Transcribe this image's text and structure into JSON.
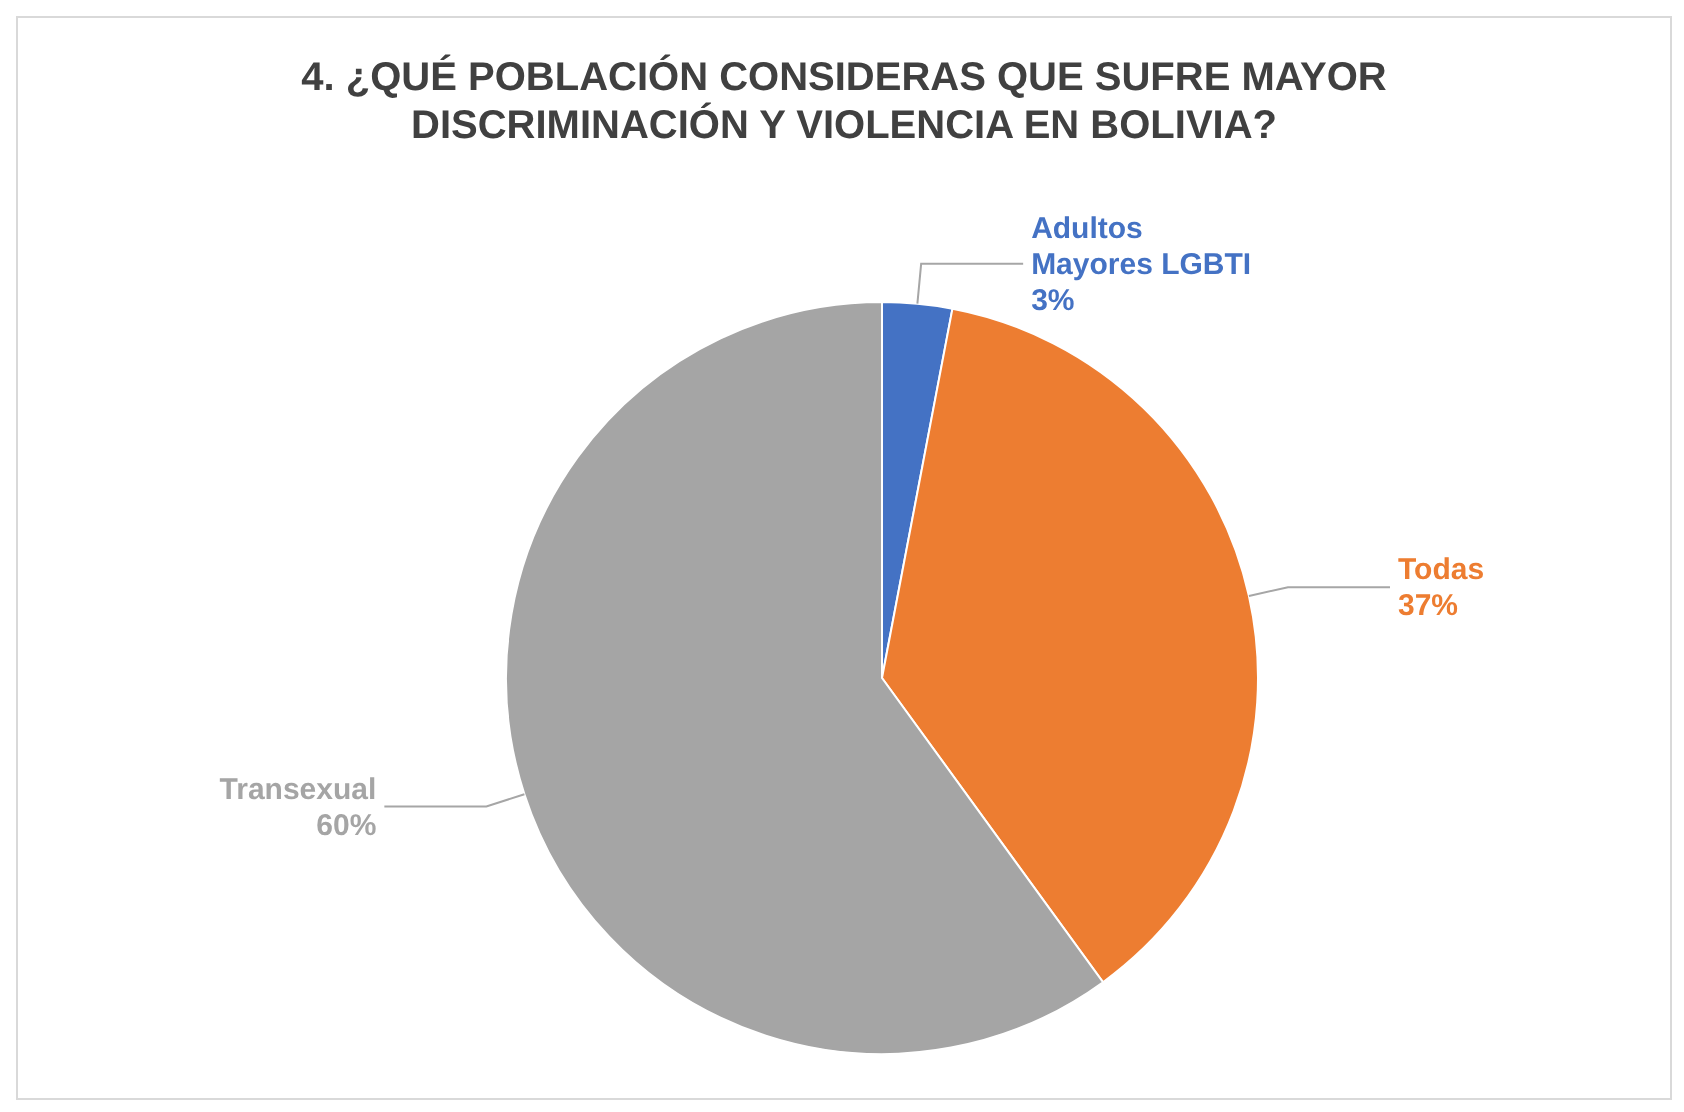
{
  "chart_data": {
    "type": "pie",
    "title": "4. ¿QUÉ POBLACIÓN CONSIDERAS QUE SUFRE MAYOR DISCRIMINACIÓN Y VIOLENCIA EN BOLIVIA?",
    "categories": [
      "Adultos Mayores LGBTI",
      "Todas",
      "Transexual"
    ],
    "values": [
      3,
      37,
      60
    ],
    "value_labels": [
      "3%",
      "37%",
      "60%"
    ],
    "colors": [
      "#4472c4",
      "#ed7d31",
      "#a5a5a5"
    ],
    "legend": false
  }
}
